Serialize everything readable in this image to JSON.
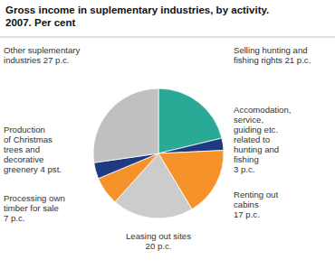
{
  "chart_data": {
    "type": "pie",
    "title": "Gross income in suplementary industries, by activity.\n2007. Per cent",
    "categories": [
      "Selling hunting and\nfishing rights 21 p.c.",
      "Accomodation,\nservice,\nguiding etc.\nrelated to\nhunting and\nfishing\n3 p.c.",
      "Renting out\ncabins\n17 p.c.",
      "Leasing out sites\n20 p.c.",
      "Processing own\ntimber for sale\n7 p.c.",
      "Production\nof Christmas\ntrees and\ndecorative\ngreenery 4 pst.",
      "Other suplementary\nindustries 27 p.c."
    ],
    "values": [
      21,
      3,
      17,
      20,
      7,
      4,
      27
    ],
    "colors": [
      "#2aaa96",
      "#1e3a80",
      "#f5922a",
      "#cccccc",
      "#f5922a",
      "#1e3a80",
      "#c0c0c0"
    ]
  }
}
